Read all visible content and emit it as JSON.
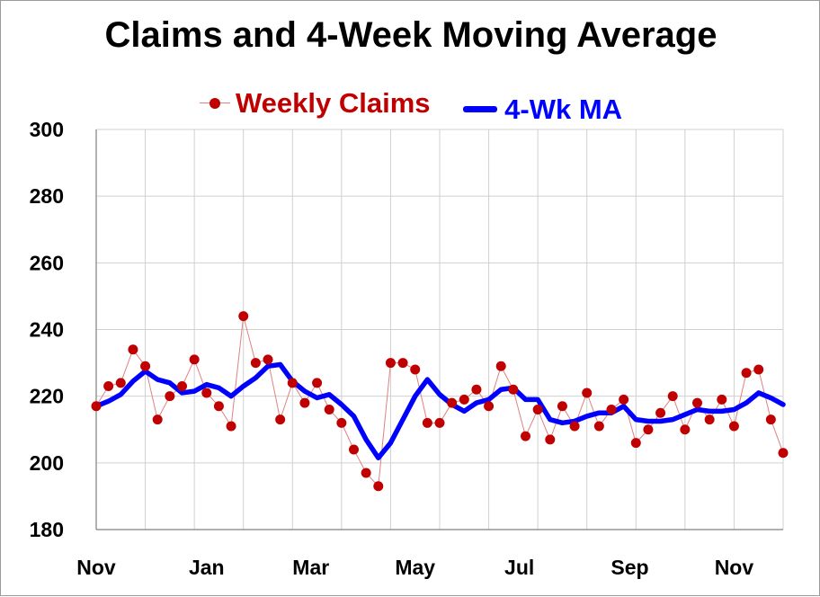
{
  "chart_data": {
    "type": "line",
    "title": "Claims and 4-Week Moving Average",
    "xlabel": "",
    "ylabel": "",
    "ylim": [
      180,
      300
    ],
    "yticks": [
      "180",
      "200",
      "220",
      "240",
      "260",
      "280",
      "300"
    ],
    "xtick_labels": [
      "Nov",
      "Jan",
      "Mar",
      "May",
      "Jul",
      "Sep",
      "Nov"
    ],
    "xtick_weeks": [
      0,
      9,
      17.5,
      26,
      34.5,
      43.5,
      52
    ],
    "grid": "both",
    "legend_position": "top",
    "colors": {
      "claims": "#c00000",
      "claims_line": "#e08080",
      "ma": "#0000ff",
      "grid": "#d0d0d0"
    },
    "series": [
      {
        "name": "Weekly Claims",
        "style": "points",
        "values": [
          217,
          223,
          224,
          234,
          229,
          213,
          220,
          223,
          231,
          221,
          217,
          211,
          244,
          230,
          231,
          213,
          224,
          218,
          224,
          216,
          212,
          204,
          197,
          193,
          230,
          230,
          228,
          212,
          212,
          218,
          219,
          222,
          217,
          229,
          222,
          208,
          216,
          207,
          217,
          211,
          221,
          211,
          216,
          219,
          206,
          210,
          215,
          220,
          210,
          218,
          213,
          219,
          211,
          227,
          228,
          213,
          203
        ]
      },
      {
        "name": "4-Wk MA",
        "style": "line",
        "values": [
          217,
          218.5,
          220.5,
          224.5,
          227.5,
          225,
          224,
          221,
          221.5,
          223.5,
          222.5,
          220,
          223,
          225.5,
          229,
          229.5,
          224.5,
          221.5,
          219.5,
          220.5,
          217.5,
          214,
          207,
          201.5,
          206,
          213,
          220,
          225,
          220.5,
          217.5,
          215.5,
          218,
          219,
          222,
          222.5,
          219,
          219,
          213,
          212,
          212.5,
          214,
          215,
          215,
          217,
          213,
          212.5,
          212.5,
          213,
          214.5,
          216,
          215.5,
          215.5,
          216,
          218,
          221,
          219.5,
          217.5
        ]
      }
    ]
  }
}
